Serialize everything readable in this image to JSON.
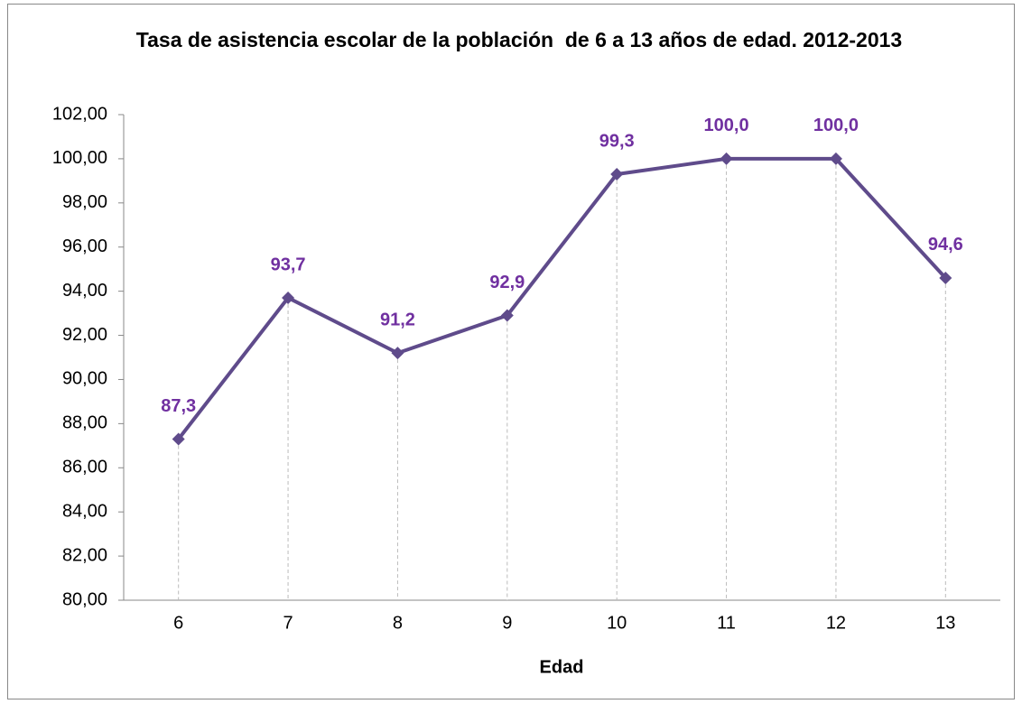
{
  "chart_data": {
    "type": "line",
    "title": "Tasa de asistencia escolar de la población  de 6 a 13 años de edad. 2012-2013",
    "x_label": "Edad",
    "categories": [
      "6",
      "7",
      "8",
      "9",
      "10",
      "11",
      "12",
      "13"
    ],
    "series": [
      {
        "color": "#5f4b8b",
        "values": [
          87.3,
          93.7,
          91.2,
          92.9,
          99.3,
          100.0,
          100.0,
          94.6
        ],
        "value_labels": [
          "87,3",
          "93,7",
          "91,2",
          "92,9",
          "99,3",
          "100,0",
          "100,0",
          "94,6"
        ]
      }
    ],
    "ylim": [
      80,
      102
    ],
    "yticks": [
      {
        "value": 80,
        "label": "80,00"
      },
      {
        "value": 82,
        "label": "82,00"
      },
      {
        "value": 84,
        "label": "84,00"
      },
      {
        "value": 86,
        "label": "86,00"
      },
      {
        "value": 88,
        "label": "88,00"
      },
      {
        "value": 90,
        "label": "90,00"
      },
      {
        "value": 92,
        "label": "92,00"
      },
      {
        "value": 94,
        "label": "94,00"
      },
      {
        "value": 96,
        "label": "96,00"
      },
      {
        "value": 98,
        "label": "98,00"
      },
      {
        "value": 100,
        "label": "100,00"
      },
      {
        "value": 102,
        "label": "102,00"
      }
    ],
    "label_color": "#7030a0",
    "drop_lines": true
  }
}
